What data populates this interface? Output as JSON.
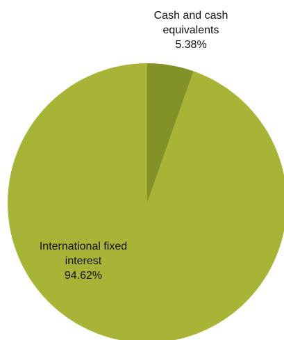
{
  "chart_data": {
    "type": "pie",
    "slices": [
      {
        "label_lines": [
          "Cash and cash",
          "equivalents"
        ],
        "percent_label": "5.38%",
        "value": 5.38,
        "color": "#849127"
      },
      {
        "label_lines": [
          "International fixed",
          "interest"
        ],
        "percent_label": "94.62%",
        "value": 94.62,
        "color": "#a7b435"
      }
    ],
    "start_angle": "12 o'clock",
    "direction": "clockwise",
    "legend": "none"
  }
}
